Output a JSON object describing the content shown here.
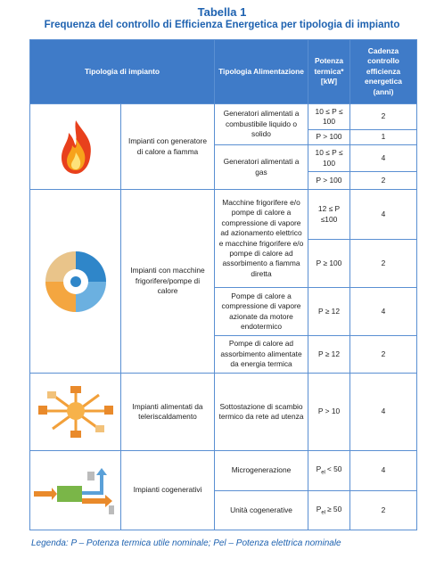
{
  "title": "Tabella 1",
  "subtitle": "Frequenza del controllo di Efficienza Energetica per tipologia di impianto",
  "table": {
    "header": [
      "Tipologia di impianto",
      "Tipologia Alimentazione",
      "Potenza termica* [kW]",
      "Cadenza controllo efficienza energetica (anni)"
    ],
    "groups": [
      {
        "impianto": "Impianti con generatore di calore a fiamma",
        "alimentazioni": [
          {
            "label": "Generatori alimentati a combustibile liquido o solido",
            "potenze": [
              {
                "potenza": "10 ≤ P ≤ 100",
                "cadenza": 2
              },
              {
                "potenza": "P > 100",
                "cadenza": 1
              }
            ]
          },
          {
            "label": "Generatori alimentati a gas",
            "potenze": [
              {
                "potenza": "10 ≤ P ≤ 100",
                "cadenza": 4
              },
              {
                "potenza": "P > 100",
                "cadenza": 2
              }
            ]
          }
        ]
      },
      {
        "impianto": "Impianti con macchine frigorifere/pompe di calore",
        "alimentazioni": [
          {
            "label": "Macchine frigorifere e/o pompe di calore a compressione di vapore ad azionamento elettrico e macchine frigorifere e/o pompe di calore ad assorbimento a fiamma diretta",
            "potenze": [
              {
                "potenza": "12 ≤ P ≤100",
                "cadenza": 4
              },
              {
                "potenza": "P ≥ 100",
                "cadenza": 2
              }
            ]
          },
          {
            "label": "Pompe di calore a compressione di vapore azionate da motore endotermico",
            "potenze": [
              {
                "potenza": "P ≥ 12",
                "cadenza": 4
              }
            ]
          },
          {
            "label": "Pompe di calore ad assorbimento alimentate da energia termica",
            "potenze": [
              {
                "potenza": "P ≥ 12",
                "cadenza": 2
              }
            ]
          }
        ]
      },
      {
        "impianto": "Impianti alimentati da teleriscaldamento",
        "alimentazioni": [
          {
            "label": "Sottostazione di scambio termico da rete ad utenza",
            "potenze": [
              {
                "potenza": "P > 10",
                "cadenza": 4
              }
            ]
          }
        ]
      },
      {
        "impianto": "Impianti cogenerativi",
        "alimentazioni": [
          {
            "label": "Microgenerazione",
            "potenze": [
              {
                "potenza": {
                  "base": "P",
                  "sub": "el",
                  "rest": "< 50"
                },
                "cadenza": 4
              }
            ]
          },
          {
            "label": "Unità cogenerative",
            "potenze": [
              {
                "potenza": {
                  "base": "P",
                  "sub": "el",
                  "rest": "≥ 50"
                },
                "cadenza": 2
              }
            ]
          }
        ]
      }
    ]
  },
  "legend": "Legenda: P – Potenza termica utile nominale; Pel – Potenza elettrica nominale"
}
